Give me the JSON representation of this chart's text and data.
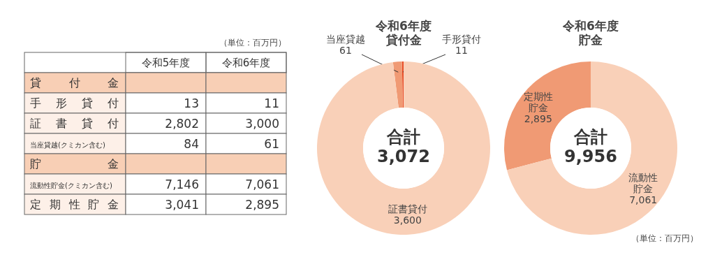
{
  "chart_data": [
    {
      "type": "other",
      "categories": [
        "貸付金",
        "手形貸付",
        "証書貸付",
        "当座貸越(クミカン含む)",
        "貯金",
        "流動性貯金(クミカン含む)",
        "定期性貯金"
      ],
      "annotations": [
        "（単位：百万円）",
        "令和5年度",
        "令和6年度",
        "13",
        "11",
        "2,802",
        "3,000",
        "84",
        "61",
        "7,146",
        "7,061",
        "3,041",
        "2,895"
      ]
    },
    {
      "type": "donut",
      "title": "令和6年度貸付金",
      "categories": [
        "手形貸付",
        "当座貸越",
        "証書貸付"
      ],
      "values": [
        11,
        61,
        3600
      ],
      "value_labels": [
        "11",
        "61",
        "3,600"
      ],
      "colors": [
        "#e8502a",
        "#f09a74",
        "#f9d0b8"
      ],
      "annotations": [
        "合計3,072"
      ]
    },
    {
      "type": "donut",
      "title": "令和6年度貯金",
      "categories": [
        "定期性貯金",
        "流動性貯金"
      ],
      "values": [
        2895,
        7061
      ],
      "value_labels": [
        "2,895",
        "7,061"
      ],
      "colors": [
        "#f09a74",
        "#f9d0b8"
      ],
      "annotations": [
        "合計9,956",
        "（単位：百万円）"
      ]
    }
  ]
}
